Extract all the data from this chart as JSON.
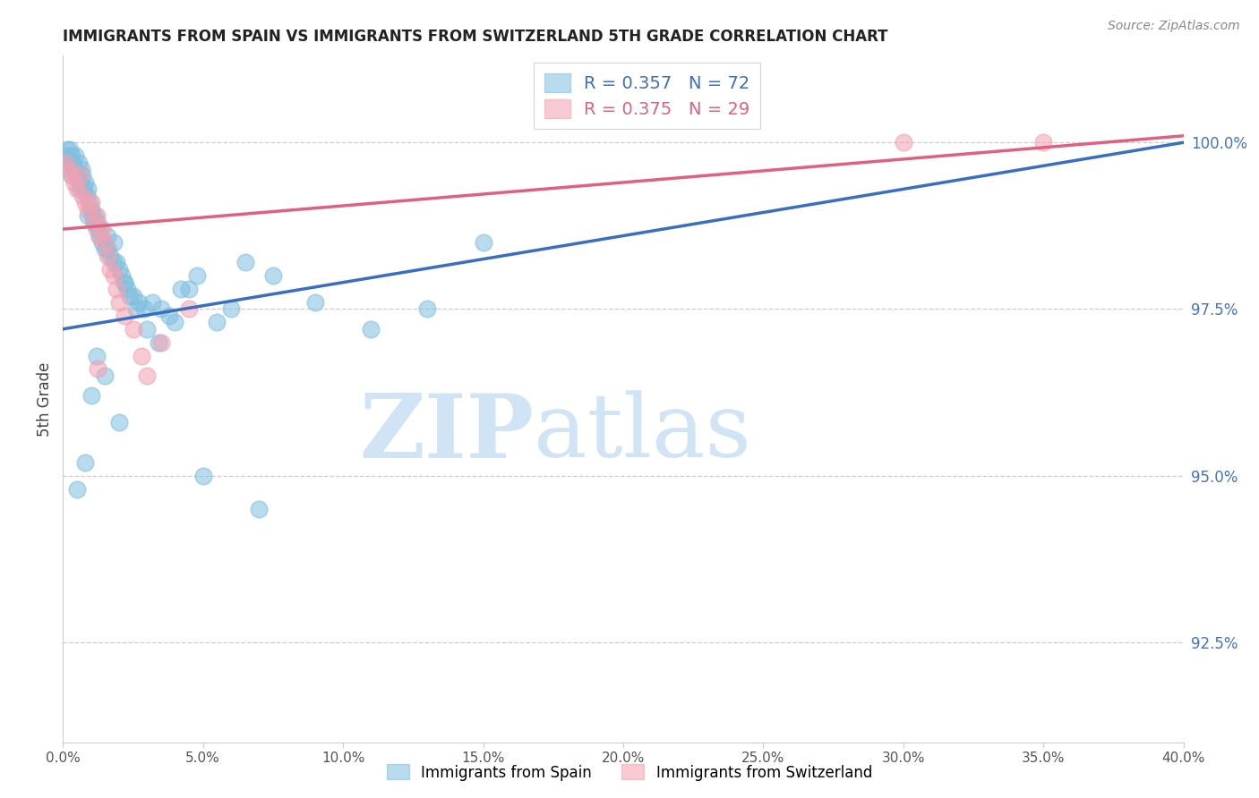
{
  "title": "IMMIGRANTS FROM SPAIN VS IMMIGRANTS FROM SWITZERLAND 5TH GRADE CORRELATION CHART",
  "source": "Source: ZipAtlas.com",
  "ylabel": "5th Grade",
  "y_ticks": [
    92.5,
    95.0,
    97.5,
    100.0
  ],
  "y_tick_labels": [
    "92.5%",
    "95.0%",
    "97.5%",
    "100.0%"
  ],
  "x_min": 0.0,
  "x_max": 40.0,
  "y_min": 91.0,
  "y_max": 101.3,
  "blue_R": 0.357,
  "blue_N": 72,
  "pink_R": 0.375,
  "pink_N": 29,
  "blue_color": "#7fbfdf",
  "pink_color": "#f4a0b0",
  "blue_line_color": "#3a6fbf",
  "pink_line_color": "#e06080",
  "blue_line_x0": 0.0,
  "blue_line_y0": 97.2,
  "blue_line_x1": 40.0,
  "blue_line_y1": 100.0,
  "pink_line_x0": 0.0,
  "pink_line_y0": 98.7,
  "pink_line_x1": 40.0,
  "pink_line_y1": 100.1,
  "watermark_zip": "ZIP",
  "watermark_atlas": "atlas",
  "watermark_color": "#d0e4f5",
  "legend_blue_label": "R = 0.357   N = 72",
  "legend_pink_label": "R = 0.375   N = 29",
  "blue_scatter_x": [
    0.1,
    0.15,
    0.2,
    0.25,
    0.3,
    0.35,
    0.4,
    0.45,
    0.5,
    0.55,
    0.6,
    0.65,
    0.7,
    0.75,
    0.8,
    0.85,
    0.9,
    0.95,
    1.0,
    1.05,
    1.1,
    1.15,
    1.2,
    1.25,
    1.3,
    1.4,
    1.5,
    1.6,
    1.7,
    1.8,
    1.9,
    2.0,
    2.1,
    2.2,
    2.3,
    2.5,
    2.7,
    2.9,
    3.2,
    3.5,
    3.8,
    4.2,
    4.8,
    5.5,
    6.0,
    6.5,
    7.5,
    9.0,
    11.0,
    13.0,
    15.0,
    1.2,
    1.5,
    2.0,
    0.5,
    0.8,
    1.0,
    0.3,
    0.6,
    0.9,
    1.3,
    1.6,
    1.8,
    2.2,
    2.4,
    2.6,
    3.0,
    3.4,
    4.0,
    4.5,
    5.0,
    7.0
  ],
  "blue_scatter_y": [
    99.8,
    99.9,
    99.7,
    99.9,
    99.8,
    99.7,
    99.6,
    99.8,
    99.5,
    99.7,
    99.4,
    99.6,
    99.5,
    99.3,
    99.4,
    99.2,
    99.3,
    99.1,
    99.0,
    98.9,
    98.8,
    98.9,
    98.7,
    98.8,
    98.6,
    98.5,
    98.4,
    98.6,
    98.3,
    98.5,
    98.2,
    98.1,
    98.0,
    97.9,
    97.8,
    97.7,
    97.6,
    97.5,
    97.6,
    97.5,
    97.4,
    97.8,
    98.0,
    97.3,
    97.5,
    98.2,
    98.0,
    97.6,
    97.2,
    97.5,
    98.5,
    96.8,
    96.5,
    95.8,
    94.8,
    95.2,
    96.2,
    99.5,
    99.3,
    98.9,
    98.7,
    98.4,
    98.2,
    97.9,
    97.7,
    97.5,
    97.2,
    97.0,
    97.3,
    97.8,
    95.0,
    94.5
  ],
  "pink_scatter_x": [
    0.1,
    0.2,
    0.3,
    0.4,
    0.5,
    0.6,
    0.7,
    0.8,
    0.9,
    1.0,
    1.1,
    1.2,
    1.3,
    1.4,
    1.5,
    1.6,
    1.7,
    1.8,
    1.9,
    2.0,
    2.2,
    2.5,
    2.8,
    3.0,
    3.5,
    4.5,
    30.0,
    35.0,
    1.25
  ],
  "pink_scatter_y": [
    99.7,
    99.6,
    99.5,
    99.4,
    99.3,
    99.5,
    99.2,
    99.1,
    99.0,
    99.1,
    98.8,
    98.9,
    98.6,
    98.7,
    98.5,
    98.3,
    98.1,
    98.0,
    97.8,
    97.6,
    97.4,
    97.2,
    96.8,
    96.5,
    97.0,
    97.5,
    100.0,
    100.0,
    96.6
  ]
}
